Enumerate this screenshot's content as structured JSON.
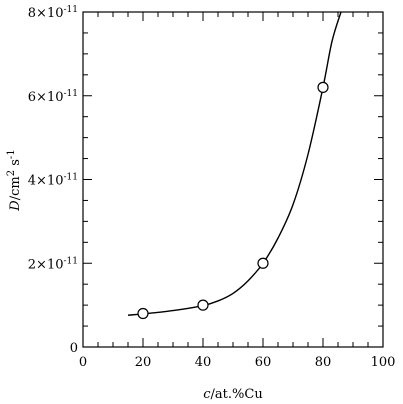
{
  "chart_data": {
    "type": "scatter",
    "title": "",
    "xlabel": {
      "italic": "c",
      "rest": "/at.%Cu"
    },
    "ylabel": {
      "italic": "D",
      "unit": "/cm",
      "sup1": "2",
      "unit2": " s",
      "sup2": "-1"
    },
    "xlim": [
      0,
      100
    ],
    "ylim": [
      0,
      8e-11
    ],
    "x_ticks": [
      {
        "value": 0,
        "label": "0"
      },
      {
        "value": 20,
        "label": "20"
      },
      {
        "value": 40,
        "label": "40"
      },
      {
        "value": 60,
        "label": "60"
      },
      {
        "value": 80,
        "label": "80"
      },
      {
        "value": 100,
        "label": "100"
      }
    ],
    "y_ticks": [
      {
        "value": 0,
        "mantissa": "0",
        "exponent": ""
      },
      {
        "value": 2e-11,
        "mantissa": "2×10",
        "exponent": "-11"
      },
      {
        "value": 4e-11,
        "mantissa": "4×10",
        "exponent": "-11"
      },
      {
        "value": 6e-11,
        "mantissa": "6×10",
        "exponent": "-11"
      },
      {
        "value": 8e-11,
        "mantissa": "8×10",
        "exponent": "-11"
      }
    ],
    "series": [
      {
        "points": [
          {
            "x": 20,
            "y": 8e-12
          },
          {
            "x": 40,
            "y": 1e-11
          },
          {
            "x": 60,
            "y": 2e-11
          },
          {
            "x": 80,
            "y": 6.2e-11
          }
        ],
        "curve": [
          {
            "x": 15,
            "y": 7.6e-12
          },
          {
            "x": 20,
            "y": 7.9e-12
          },
          {
            "x": 30,
            "y": 8.7e-12
          },
          {
            "x": 40,
            "y": 9.9e-12
          },
          {
            "x": 45,
            "y": 1.1e-11
          },
          {
            "x": 50,
            "y": 1.28e-11
          },
          {
            "x": 55,
            "y": 1.58e-11
          },
          {
            "x": 60,
            "y": 2e-11
          },
          {
            "x": 65,
            "y": 2.6e-11
          },
          {
            "x": 70,
            "y": 3.4e-11
          },
          {
            "x": 75,
            "y": 4.6e-11
          },
          {
            "x": 80,
            "y": 6.2e-11
          },
          {
            "x": 83,
            "y": 7.3e-11
          },
          {
            "x": 86,
            "y": 8e-11
          }
        ]
      }
    ],
    "grid": false,
    "minor_ticks": {
      "x_step": 5,
      "y_step": 5e-12
    }
  }
}
